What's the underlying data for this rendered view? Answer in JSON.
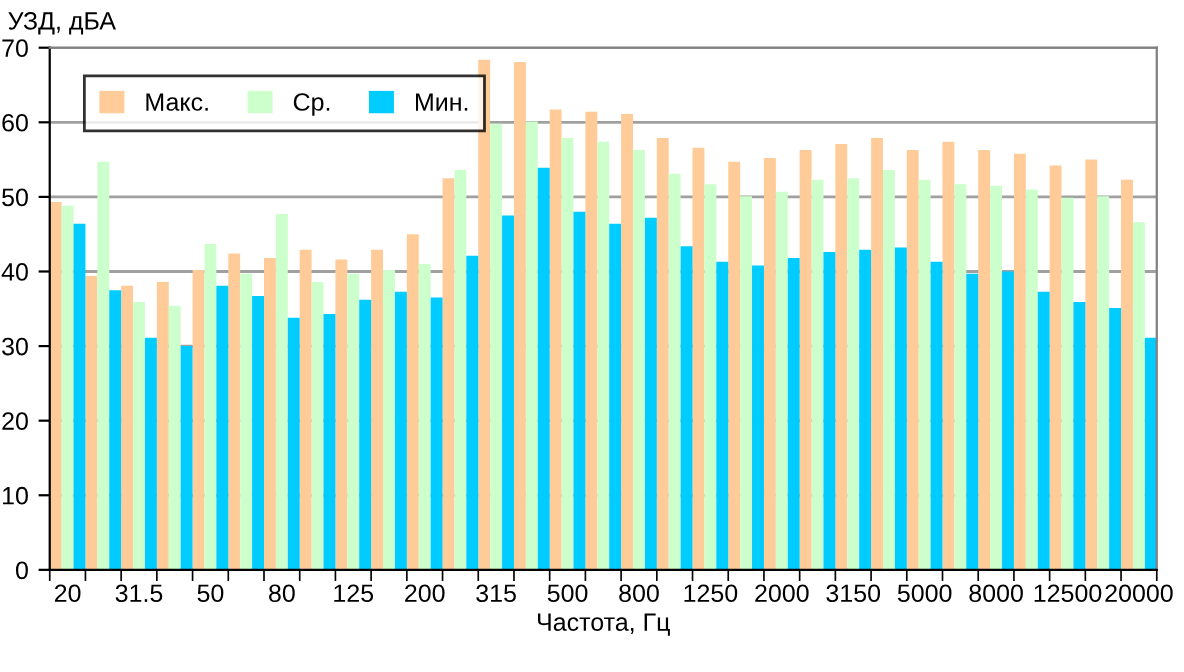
{
  "chart_data": {
    "type": "bar",
    "xlabel": "Частота, Гц",
    "ylabel": "УЗД, дБА",
    "categories": [
      "20",
      null,
      "31.5",
      null,
      "50",
      null,
      "80",
      null,
      "125",
      null,
      "200",
      null,
      "315",
      null,
      "500",
      null,
      "800",
      null,
      "1250",
      null,
      "2000",
      null,
      "3150",
      null,
      "5000",
      null,
      "8000",
      null,
      "12500",
      null,
      "20000"
    ],
    "series": [
      {
        "name": "Макс.",
        "color": "#ffcc99",
        "values": [
          49.3,
          39.4,
          38.1,
          38.6,
          40.2,
          42.4,
          41.8,
          42.9,
          41.6,
          42.9,
          45.0,
          52.5,
          68.4,
          68.1,
          61.7,
          61.4,
          61.1,
          57.9,
          56.6,
          54.7,
          55.2,
          56.3,
          57.1,
          57.9,
          56.3,
          57.4,
          56.3,
          55.8,
          54.2,
          55.0,
          52.3
        ]
      },
      {
        "name": "Ср.",
        "color": "#ccffcc",
        "values": [
          48.8,
          54.7,
          35.9,
          35.4,
          43.7,
          39.7,
          47.7,
          38.6,
          39.7,
          40.2,
          41.0,
          53.6,
          59.8,
          60.1,
          57.9,
          57.4,
          56.3,
          53.1,
          51.7,
          50.1,
          50.7,
          52.3,
          52.5,
          53.6,
          52.3,
          51.7,
          51.5,
          51.0,
          49.9,
          50.1,
          46.6
        ]
      },
      {
        "name": "Мин.",
        "color": "#00ccff",
        "values": [
          46.4,
          37.5,
          31.1,
          30.0,
          38.1,
          36.7,
          33.8,
          34.3,
          36.2,
          37.3,
          36.5,
          42.1,
          47.5,
          53.9,
          48.0,
          46.4,
          47.2,
          43.4,
          41.3,
          40.8,
          41.8,
          42.6,
          42.9,
          43.2,
          41.3,
          39.7,
          40.0,
          37.3,
          35.9,
          35.1,
          31.1
        ]
      }
    ],
    "ylim": [
      0,
      70
    ],
    "yticks": [
      0,
      10,
      20,
      30,
      40,
      50,
      60,
      70
    ],
    "grid": "y",
    "legend": "top left"
  }
}
